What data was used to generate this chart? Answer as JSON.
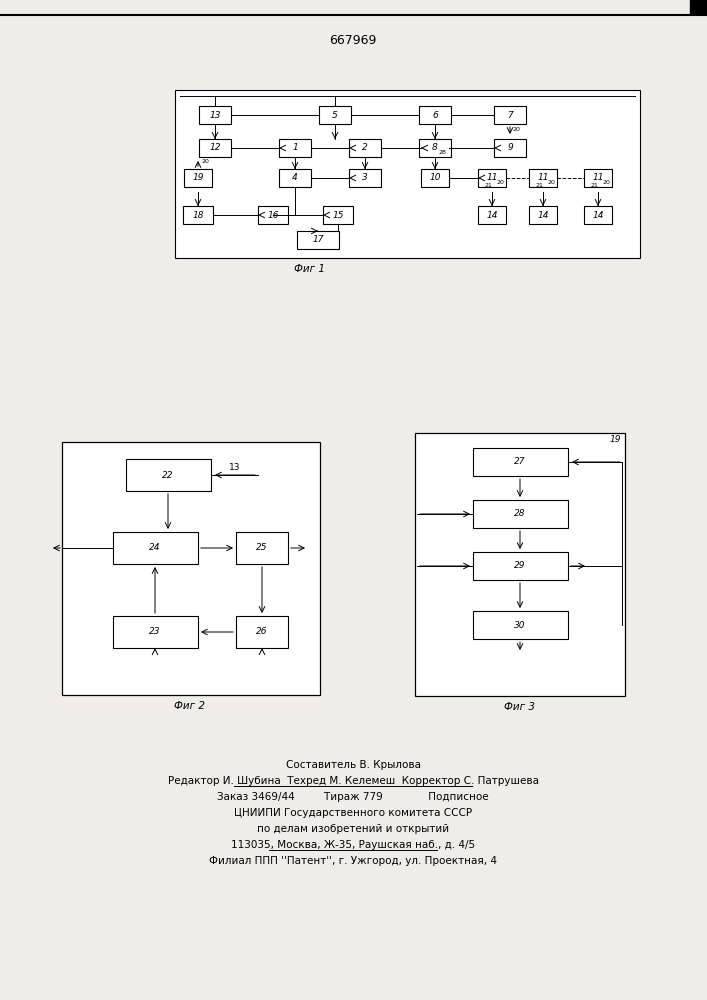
{
  "title": "667969",
  "bg_color": "#f0ede8",
  "fig1_caption": "Фиг 1",
  "fig2_caption": "Фиг 2",
  "fig3_caption": "Фиг 3",
  "footer_lines": [
    "Составитель В. Крылова",
    "Редактор И. Шубина  Техред М. Келемеш  Корректор С. Патрушева",
    "Заказ 3469/44         Тираж 779              Подписное",
    "ЦНИИПИ Государственного комитета СССР",
    "по делам изобретений и открытий",
    "113035, Москва, Ж-35, Раушская наб., д. 4/5",
    "Филиал ППП ''Патент'', г. Ужгород, ул. Проектная, 4"
  ],
  "footer_underlines": [
    1,
    5
  ]
}
